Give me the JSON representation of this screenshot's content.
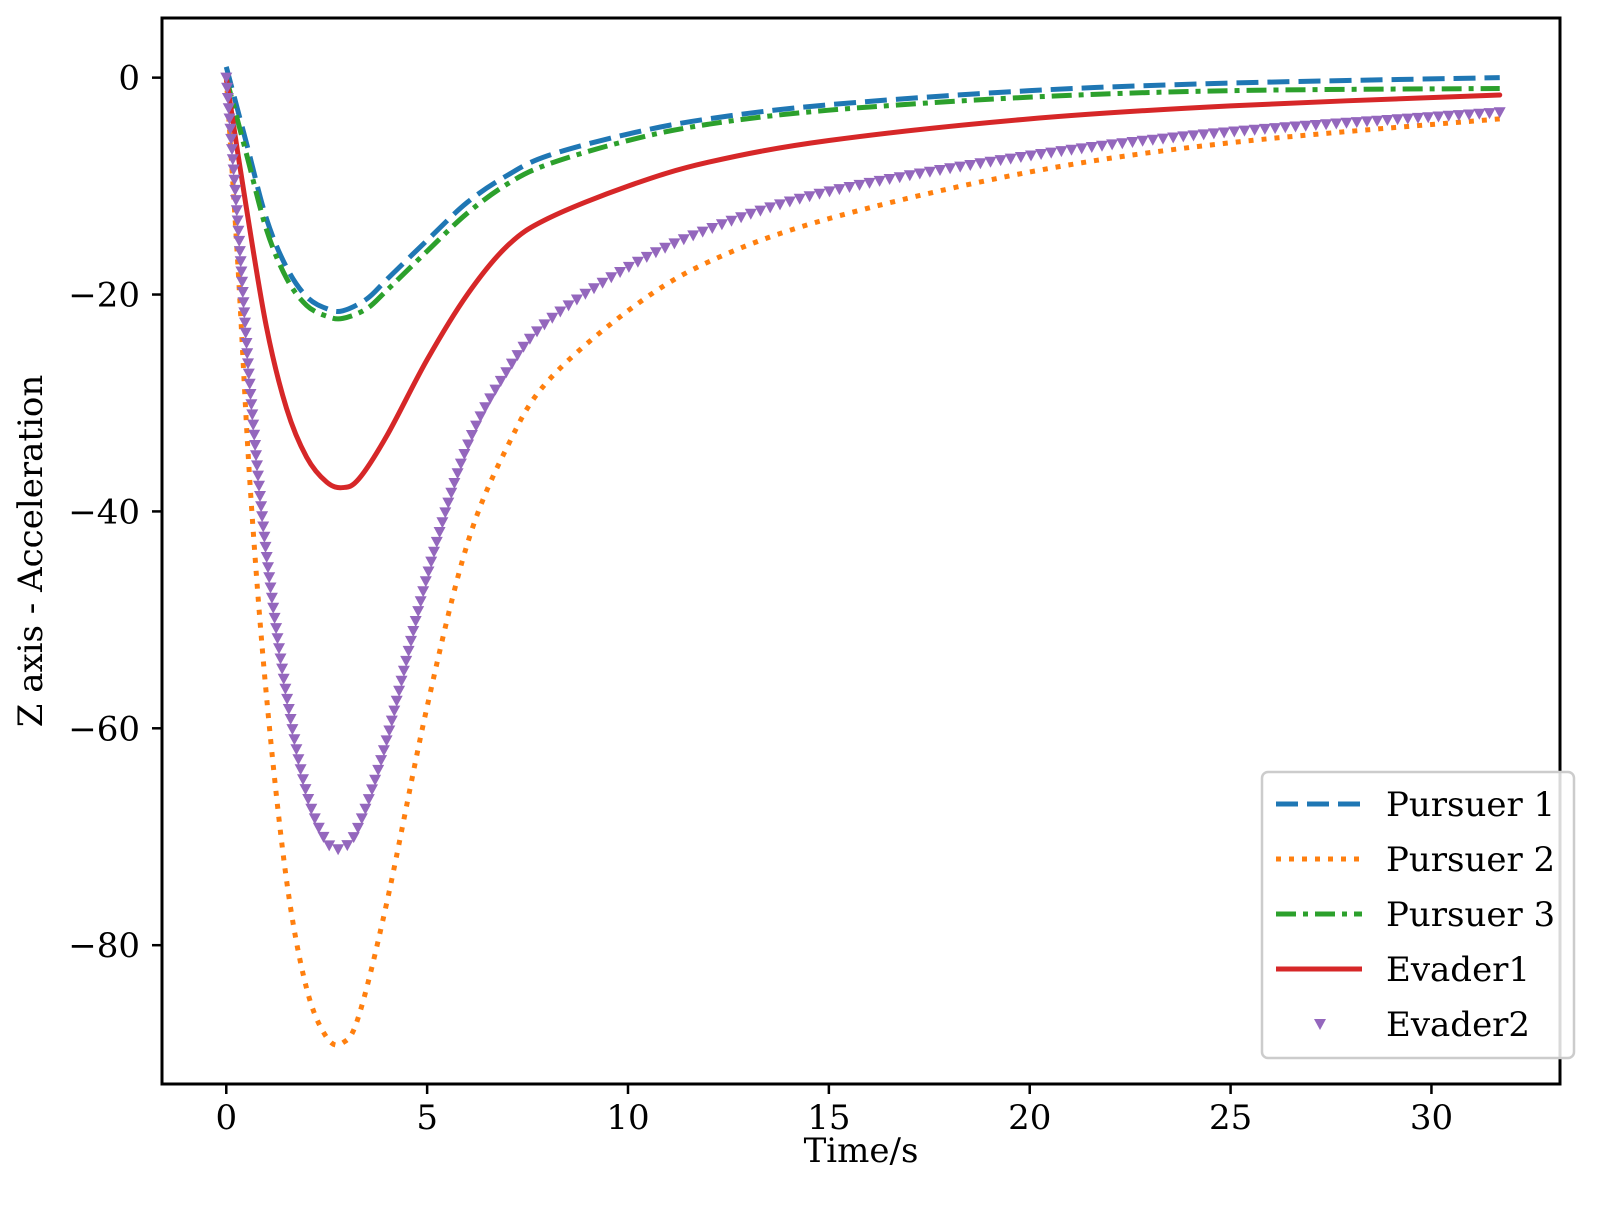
{
  "chart_data": {
    "type": "line",
    "title": "",
    "xlabel": "Time/s",
    "ylabel": "Z axis - Acceleration",
    "xlim": [
      -1.6,
      33.2
    ],
    "ylim": [
      -92.8,
      5.5
    ],
    "xticks": [
      0,
      5,
      10,
      15,
      20,
      25,
      30
    ],
    "yticks": [
      0,
      -20,
      -40,
      -60,
      -80
    ],
    "ytick_labels": [
      "0",
      "−20",
      "−40",
      "−60",
      "−80"
    ],
    "legend_position": "lower-right",
    "series": [
      {
        "name": "Pursuer 1",
        "color": "#1f77b4",
        "style": "dashed",
        "x": [
          0,
          0.5,
          1,
          1.5,
          2,
          2.5,
          2.9,
          3.5,
          4,
          5,
          6,
          7,
          8,
          10,
          12,
          15,
          20,
          25,
          31.7
        ],
        "y": [
          1.0,
          -6.0,
          -13.0,
          -17.5,
          -20.2,
          -21.3,
          -21.5,
          -20.4,
          -18.6,
          -15.0,
          -11.5,
          -9.0,
          -7.2,
          -5.2,
          -3.8,
          -2.5,
          -1.2,
          -0.5,
          0.0
        ]
      },
      {
        "name": "Pursuer 2",
        "color": "#ff7f0e",
        "style": "dotted",
        "x": [
          0,
          0.3,
          0.6,
          1,
          1.5,
          2,
          2.5,
          2.9,
          3.3,
          4,
          5,
          6,
          7,
          8,
          10,
          12,
          15,
          20,
          25,
          31.7
        ],
        "y": [
          0,
          -18.0,
          -38.0,
          -57.0,
          -74.0,
          -84.0,
          -88.5,
          -89.0,
          -86.5,
          -76.0,
          -58.0,
          -43.0,
          -34.0,
          -28.0,
          -21.5,
          -17.0,
          -13.0,
          -8.7,
          -6.0,
          -3.8
        ]
      },
      {
        "name": "Pursuer 3",
        "color": "#2ca02c",
        "style": "dashdot",
        "x": [
          0,
          0.5,
          1,
          1.5,
          2,
          2.5,
          2.9,
          3.5,
          4,
          5,
          6,
          7,
          8,
          10,
          12,
          15,
          20,
          25,
          31.7
        ],
        "y": [
          0,
          -7.0,
          -14.0,
          -18.5,
          -21.0,
          -22.0,
          -22.2,
          -21.3,
          -19.6,
          -16.0,
          -12.5,
          -9.8,
          -8.0,
          -5.8,
          -4.3,
          -3.0,
          -1.8,
          -1.2,
          -1.0
        ]
      },
      {
        "name": "Evader1",
        "color": "#d62728",
        "style": "solid",
        "x": [
          0,
          0.5,
          1,
          1.5,
          2,
          2.5,
          2.9,
          3.3,
          4,
          5,
          6,
          7,
          8,
          10,
          12,
          15,
          20,
          25,
          31.7
        ],
        "y": [
          0,
          -12.0,
          -23.0,
          -30.5,
          -35.0,
          -37.3,
          -37.8,
          -37.0,
          -33.0,
          -26.0,
          -20.0,
          -15.5,
          -13.0,
          -10.0,
          -7.8,
          -5.8,
          -3.8,
          -2.6,
          -1.6
        ]
      },
      {
        "name": "Evader2",
        "color": "#9467bd",
        "style": "marker-triangle-down",
        "x": [
          0,
          0.3,
          0.6,
          1,
          1.5,
          2,
          2.5,
          2.9,
          3.3,
          4,
          5,
          6,
          7,
          8,
          10,
          12,
          15,
          20,
          25,
          31.7
        ],
        "y": [
          0,
          -14.0,
          -29.0,
          -44.0,
          -57.0,
          -66.0,
          -70.5,
          -71.0,
          -69.0,
          -61.0,
          -46.0,
          -34.0,
          -27.0,
          -22.5,
          -17.5,
          -14.0,
          -10.5,
          -7.2,
          -5.0,
          -3.2
        ]
      }
    ]
  }
}
